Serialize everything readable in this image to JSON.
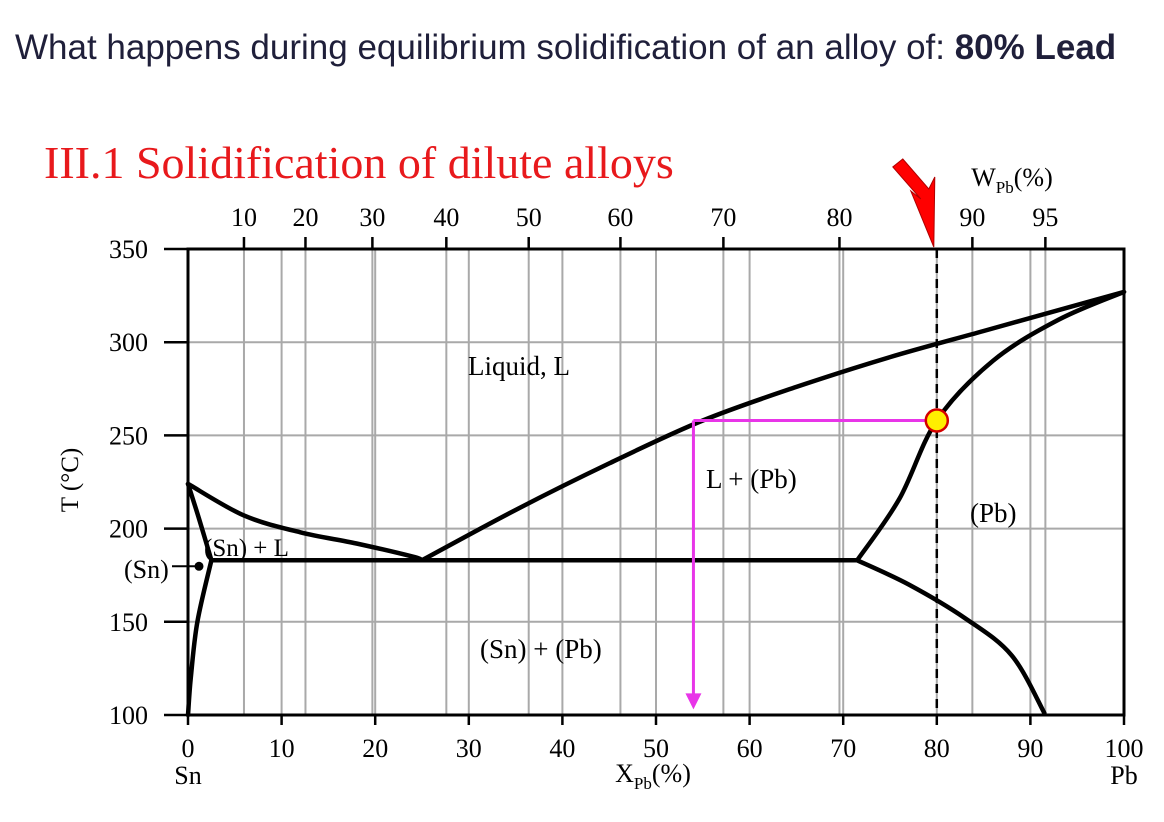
{
  "question": {
    "text": "What happens during equilibrium solidification of an alloy of:",
    "emphasis": "80% Lead"
  },
  "diagram": {
    "title": "III.1 Solidification of dilute alloys",
    "colors": {
      "title": "#e8191c",
      "grid": "#a9a9a9",
      "lines": "#000000",
      "guide": "#e835e8",
      "marker_fill": "#ffee00",
      "marker_stroke": "#d40000",
      "arrow": "#ff0000"
    },
    "y_axis": {
      "label": "T (°C)",
      "range": [
        100,
        350
      ],
      "ticks": [
        "100",
        "150",
        "200",
        "250",
        "300",
        "350"
      ],
      "extra_label": "(Sn)"
    },
    "x_axis_bottom": {
      "label_main": "X",
      "label_sub": "Pb",
      "label_suffix": "(%)",
      "range": [
        0,
        100
      ],
      "ticks": [
        "0",
        "10",
        "20",
        "30",
        "40",
        "50",
        "60",
        "70",
        "80",
        "90",
        "100"
      ],
      "left_end": "Sn",
      "right_end": "Pb"
    },
    "x_axis_top": {
      "label_main": "W",
      "label_sub": "Pb",
      "label_suffix": "(%)",
      "ticks": [
        {
          "label": "10",
          "x": 5.98
        },
        {
          "label": "20",
          "x": 12.55
        },
        {
          "label": "30",
          "x": 19.7
        },
        {
          "label": "40",
          "x": 27.6
        },
        {
          "label": "50",
          "x": 36.4
        },
        {
          "label": "60",
          "x": 46.2
        },
        {
          "label": "70",
          "x": 57.2
        },
        {
          "label": "80",
          "x": 69.6
        },
        {
          "label": "90",
          "x": 83.8
        },
        {
          "label": "95",
          "x": 91.6
        }
      ]
    },
    "regions": {
      "liquid": "Liquid, L",
      "l_pb": "L + (Pb)",
      "pb": "(Pb)",
      "sn_l": "(Sn) + L",
      "sn_pb": "(Sn) + (Pb)"
    },
    "curves": {
      "liquidus_left": [
        [
          0,
          224
        ],
        [
          6,
          207
        ],
        [
          12,
          198
        ],
        [
          18,
          192
        ],
        [
          24,
          185
        ],
        [
          25,
          183
        ]
      ],
      "liquidus_right": [
        [
          25,
          183
        ],
        [
          35,
          210
        ],
        [
          45,
          235
        ],
        [
          55,
          258
        ],
        [
          65,
          276
        ],
        [
          75,
          292
        ],
        [
          85,
          306
        ],
        [
          95,
          320
        ],
        [
          100,
          327
        ]
      ],
      "solidus_pb": [
        [
          71.5,
          183
        ],
        [
          76,
          216
        ],
        [
          80,
          258
        ],
        [
          86,
          290
        ],
        [
          93,
          312
        ],
        [
          100,
          327
        ]
      ],
      "solvus_pb": [
        [
          71.5,
          183
        ],
        [
          77,
          170
        ],
        [
          83,
          152
        ],
        [
          88,
          132
        ],
        [
          91.5,
          101
        ]
      ],
      "eutectic": [
        [
          2.5,
          183
        ],
        [
          71.5,
          183
        ]
      ],
      "sn_solidus": [
        [
          0,
          224
        ],
        [
          1.2,
          205
        ],
        [
          2.5,
          183
        ]
      ],
      "sn_solvus": [
        [
          2.5,
          183
        ],
        [
          1,
          150
        ],
        [
          0.3,
          120
        ],
        [
          0,
          100
        ]
      ]
    },
    "alloy_x": 80,
    "tie_line": {
      "t": 258,
      "x_from": 54,
      "x_to": 80
    },
    "drop_to": 103
  }
}
